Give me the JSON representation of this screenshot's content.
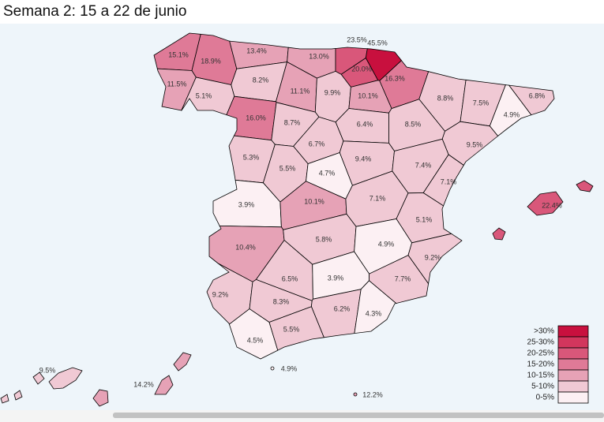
{
  "title": "Semana 2: 15 a 22 de junio",
  "regions": [
    {
      "value": 15.1,
      "label": "15.1%"
    },
    {
      "value": 18.9,
      "label": "18.9%"
    },
    {
      "value": 13.4,
      "label": "13.4%"
    },
    {
      "value": 13.0,
      "label": "13.0%"
    },
    {
      "value": 23.5,
      "label": "23.5%"
    },
    {
      "value": 45.5,
      "label": "45.5%"
    },
    {
      "value": 20.0,
      "label": "20.0%"
    },
    {
      "value": 16.3,
      "label": "16.3%"
    },
    {
      "value": 11.5,
      "label": "11.5%"
    },
    {
      "value": 8.2,
      "label": "8.2%"
    },
    {
      "value": 5.1,
      "label": "5.1%"
    },
    {
      "value": 11.1,
      "label": "11.1%"
    },
    {
      "value": 9.9,
      "label": "9.9%"
    },
    {
      "value": 10.1,
      "label": "10.1%"
    },
    {
      "value": 8.8,
      "label": "8.8%"
    },
    {
      "value": 7.5,
      "label": "7.5%"
    },
    {
      "value": 6.8,
      "label": "6.8%"
    },
    {
      "value": 4.9,
      "label": "4.9%"
    },
    {
      "value": 16.0,
      "label": "16.0%"
    },
    {
      "value": 8.7,
      "label": "8.7%"
    },
    {
      "value": 6.4,
      "label": "6.4%"
    },
    {
      "value": 8.5,
      "label": "8.5%"
    },
    {
      "value": 9.5,
      "label": "9.5%"
    },
    {
      "value": 6.7,
      "label": "6.7%"
    },
    {
      "value": 5.3,
      "label": "5.3%"
    },
    {
      "value": 9.4,
      "label": "9.4%"
    },
    {
      "value": 7.4,
      "label": "7.4%"
    },
    {
      "value": 5.5,
      "label": "5.5%"
    },
    {
      "value": 4.7,
      "label": "4.7%"
    },
    {
      "value": 7.1,
      "label": "7.1%"
    },
    {
      "value": 3.9,
      "label": "3.9%"
    },
    {
      "value": 10.1,
      "label": "10.1%"
    },
    {
      "value": 7.1,
      "label": "7.1%"
    },
    {
      "value": 5.1,
      "label": "5.1%"
    },
    {
      "value": 22.4,
      "label": "22.4%"
    },
    {
      "value": 10.4,
      "label": "10.4%"
    },
    {
      "value": 5.8,
      "label": "5.8%"
    },
    {
      "value": 4.9,
      "label": "4.9%"
    },
    {
      "value": 9.2,
      "label": "9.2%"
    },
    {
      "value": 6.5,
      "label": "6.5%"
    },
    {
      "value": 3.9,
      "label": "3.9%"
    },
    {
      "value": 7.7,
      "label": "7.7%"
    },
    {
      "value": 9.2,
      "label": "9.2%"
    },
    {
      "value": 8.3,
      "label": "8.3%"
    },
    {
      "value": 6.2,
      "label": "6.2%"
    },
    {
      "value": 4.3,
      "label": "4.3%"
    },
    {
      "value": 4.5,
      "label": "4.5%"
    },
    {
      "value": 5.5,
      "label": "5.5%"
    },
    {
      "value": 4.9,
      "label": "4.9%"
    },
    {
      "value": 12.2,
      "label": "12.2%"
    },
    {
      "value": 9.5,
      "label": "9.5%"
    },
    {
      "value": 14.2,
      "label": "14.2%"
    }
  ],
  "legend": [
    {
      "label": ">30%",
      "min": 30,
      "color": "#c8103e"
    },
    {
      "label": "25-30%",
      "min": 25,
      "color": "#d2365d"
    },
    {
      "label": "20-25%",
      "min": 20,
      "color": "#d9577a"
    },
    {
      "label": "15-20%",
      "min": 15,
      "color": "#df7a97"
    },
    {
      "label": "10-15%",
      "min": 10,
      "color": "#e6a2b6"
    },
    {
      "label": "5-10%",
      "min": 5,
      "color": "#f0c9d4"
    },
    {
      "label": "0-5%",
      "min": 0,
      "color": "#fcf0f3"
    }
  ]
}
